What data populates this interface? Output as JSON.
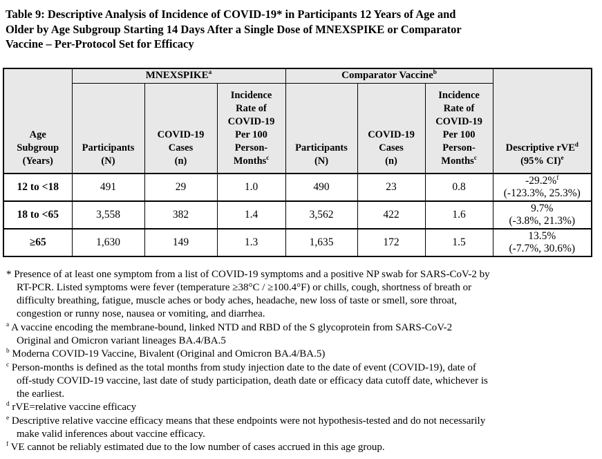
{
  "title_lines": [
    "Table 9: Descriptive Analysis of Incidence of COVID-19* in Participants 12 Years of Age and",
    "Older by Age Subgroup Starting 14 Days After a Single Dose of MNEXSPIKE or Comparator",
    "Vaccine – Per-Protocol Set for Efficacy"
  ],
  "table": {
    "group_headers": {
      "mnexspike": {
        "label": "MNEXSPIKE",
        "sup": "a"
      },
      "comparator": {
        "label": "Comparator Vaccine",
        "sup": "b"
      }
    },
    "col_headers": {
      "age_lines": [
        "Age",
        "Subgroup",
        "(Years)"
      ],
      "participants_lines": [
        "Participants",
        "(N)"
      ],
      "cases_lines": [
        "COVID-19",
        "Cases",
        "(n)"
      ],
      "incidence_lines": [
        "Incidence",
        "Rate of",
        "COVID-19",
        "Per 100",
        "Person-"
      ],
      "incidence_last": "Months",
      "incidence_sup": "c",
      "rve": {
        "line1": "Descriptive rVE",
        "sup1": "d",
        "line2": "(95% CI)",
        "sup2": "e"
      }
    },
    "rows": [
      {
        "age": "12 to <18",
        "mn_participants": "491",
        "mn_cases": "29",
        "mn_rate": "1.0",
        "cv_participants": "490",
        "cv_cases": "23",
        "cv_rate": "0.8",
        "rve_value": "-29.2%",
        "rve_sup": "f",
        "rve_ci": "(-123.3%, 25.3%)"
      },
      {
        "age": "18 to <65",
        "mn_participants": "3,558",
        "mn_cases": "382",
        "mn_rate": "1.4",
        "cv_participants": "3,562",
        "cv_cases": "422",
        "cv_rate": "1.6",
        "rve_value": "9.7%",
        "rve_sup": "",
        "rve_ci": "(-3.8%, 21.3%)"
      },
      {
        "age": "≥65",
        "mn_participants": "1,630",
        "mn_cases": "149",
        "mn_rate": "1.3",
        "cv_participants": "1,635",
        "cv_cases": "172",
        "cv_rate": "1.5",
        "rve_value": "13.5%",
        "rve_sup": "",
        "rve_ci": "(-7.7%, 30.6%)"
      }
    ]
  },
  "footnotes": [
    {
      "marker": "*",
      "lines": [
        "Presence of at least one symptom from a list of COVID-19 symptoms and a positive NP swab for SARS-CoV-2 by",
        "RT-PCR. Listed symptoms were fever (temperature ≥38°C / ≥100.4°F) or chills, cough, shortness of breath or",
        "difficulty breathing, fatigue, muscle aches or body aches, headache, new loss of taste or smell, sore throat,",
        "congestion or runny nose, nausea or vomiting, and diarrhea."
      ]
    },
    {
      "marker": "a",
      "lines": [
        "A vaccine encoding the membrane-bound, linked NTD and RBD of the S glycoprotein from SARS-CoV-2",
        "Original and Omicron variant lineages BA.4/BA.5"
      ]
    },
    {
      "marker": "b",
      "lines": [
        "Moderna COVID-19 Vaccine, Bivalent (Original and Omicron BA.4/BA.5)"
      ]
    },
    {
      "marker": "c",
      "lines": [
        "Person-months is defined as the total months from study injection date to the date of event (COVID-19), date of",
        "off-study COVID-19 vaccine, last date of study participation, death date or efficacy data cutoff date, whichever is",
        "the earliest."
      ]
    },
    {
      "marker": "d",
      "lines": [
        "rVE=relative vaccine efficacy"
      ]
    },
    {
      "marker": "e",
      "lines": [
        "Descriptive relative vaccine efficacy means that these endpoints were not hypothesis-tested and do not necessarily",
        "make valid inferences about vaccine efficacy."
      ]
    },
    {
      "marker": "f",
      "lines": [
        "VE cannot be reliably estimated due to the low number of cases accrued in this age group."
      ]
    }
  ],
  "colors": {
    "header_bg": "#e8e8e8",
    "border": "#000000",
    "text": "#000000",
    "page_bg": "#ffffff"
  }
}
